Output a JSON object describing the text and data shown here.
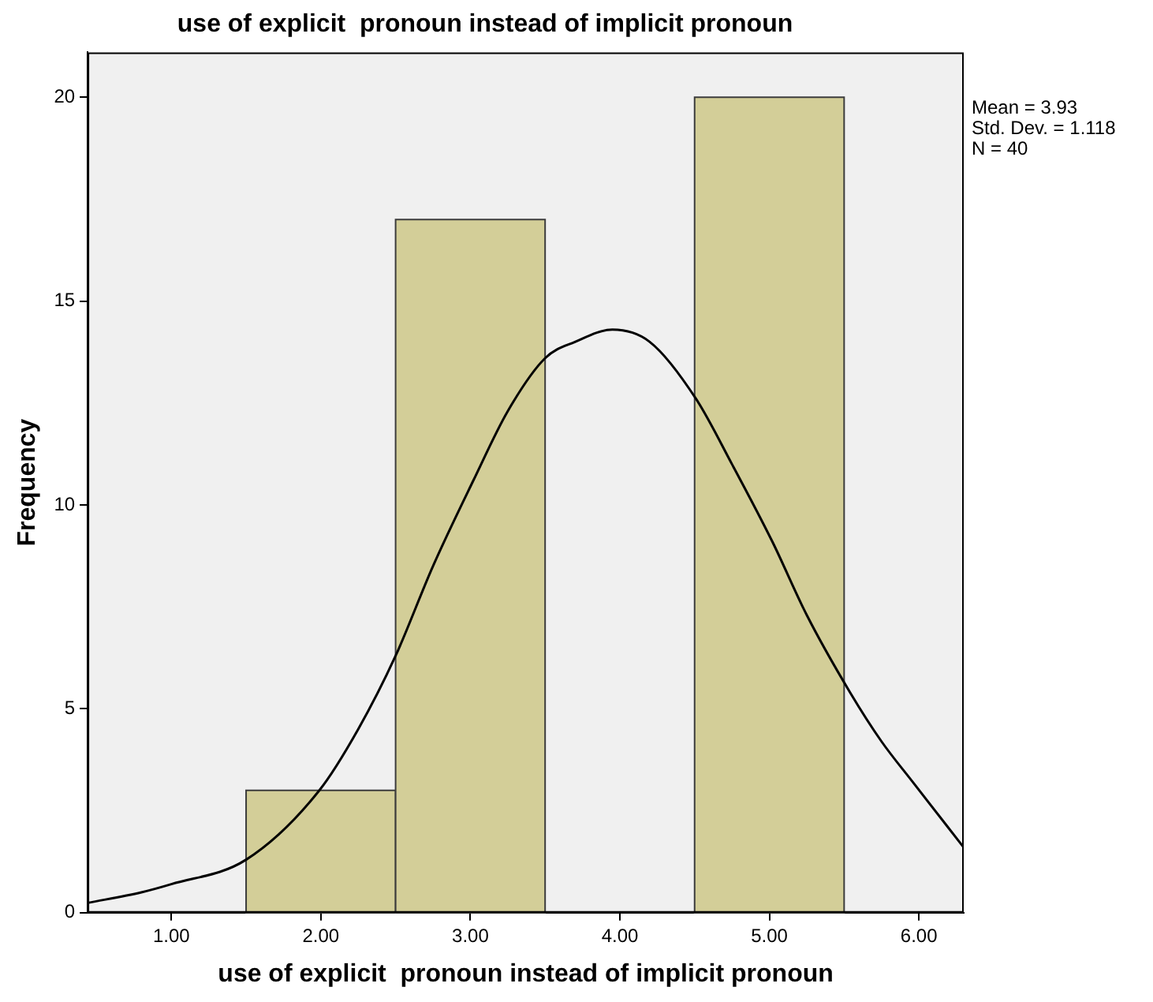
{
  "chart_data": {
    "type": "histogram",
    "title": "use of explicit  pronoun instead of implicit pronoun",
    "xlabel": "use of explicit  pronoun instead of implicit pronoun",
    "ylabel": "Frequency",
    "annotations": [
      "Mean = 3.93",
      "Std. Dev. = 1.118",
      "N = 40"
    ],
    "xlim": [
      0.44,
      6.3
    ],
    "ylim": [
      0,
      21.1
    ],
    "xticks": [
      {
        "value": 1,
        "label": "1.00"
      },
      {
        "value": 2,
        "label": "2.00"
      },
      {
        "value": 3,
        "label": "3.00"
      },
      {
        "value": 4,
        "label": "4.00"
      },
      {
        "value": 5,
        "label": "5.00"
      },
      {
        "value": 6,
        "label": "6.00"
      }
    ],
    "yticks": [
      0,
      5,
      10,
      15,
      20
    ],
    "grid": false,
    "legend": false,
    "series": [
      {
        "color": "#d3ce98",
        "bins": [
          1.5,
          2.5,
          3.5,
          4.5,
          5.5
        ],
        "values": [
          3,
          17,
          0,
          20
        ]
      },
      {
        "type": "line",
        "color": "#000000",
        "x": [
          0.44,
          0.8,
          1.0,
          1.5,
          1.99,
          2.25,
          2.5,
          2.75,
          3.02,
          3.25,
          3.5,
          3.7,
          3.95,
          4.2,
          4.51,
          4.75,
          5.02,
          5.25,
          5.54,
          5.75,
          5.96,
          6.3
        ],
        "values": [
          0.24,
          0.5,
          0.7,
          1.3,
          3,
          4.5,
          6.3,
          8.5,
          10.6,
          12.3,
          13.6,
          14.0,
          14.3,
          14.0,
          12.6,
          11.0,
          9.1,
          7.3,
          5.4,
          4.2,
          3.2,
          1.6
        ]
      }
    ]
  }
}
